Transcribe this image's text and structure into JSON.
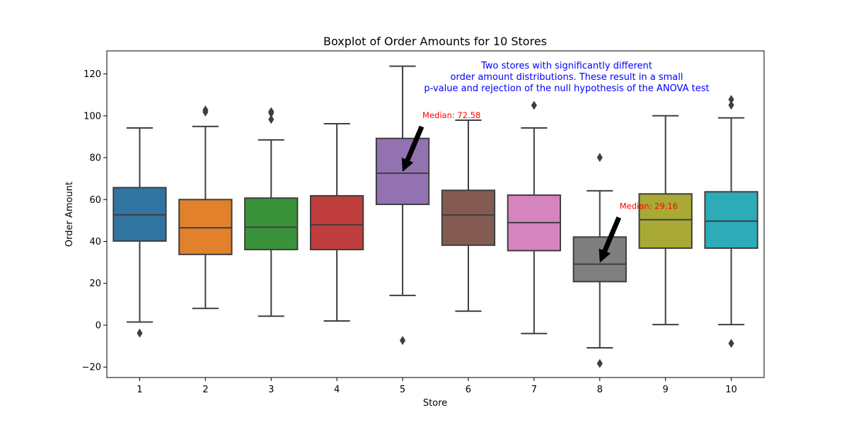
{
  "chart_data": {
    "type": "boxplot",
    "title": "Boxplot of Order Amounts for 10 Stores",
    "xlabel": "Store",
    "ylabel": "Order Amount",
    "ylim": [
      -25,
      131
    ],
    "yticks": [
      -20,
      0,
      20,
      40,
      60,
      80,
      100,
      120
    ],
    "ytick_labels": [
      "−20",
      "0",
      "20",
      "40",
      "60",
      "80",
      "100",
      "120"
    ],
    "grid": false,
    "categories": [
      "1",
      "2",
      "3",
      "4",
      "5",
      "6",
      "7",
      "8",
      "9",
      "10"
    ],
    "boxes": [
      {
        "store": "1",
        "color": "#3274a1",
        "whisker_low": 1.5,
        "q1": 40.2,
        "median": 52.7,
        "q3": 65.7,
        "whisker_high": 94.2,
        "outliers": [
          -3.8
        ]
      },
      {
        "store": "2",
        "color": "#e1812c",
        "whisker_low": 8.0,
        "q1": 33.8,
        "median": 46.5,
        "q3": 60.0,
        "whisker_high": 94.9,
        "outliers": [
          101.8,
          102.8
        ]
      },
      {
        "store": "3",
        "color": "#3a923a",
        "whisker_low": 4.3,
        "q1": 36.1,
        "median": 46.8,
        "q3": 60.7,
        "whisker_high": 88.5,
        "outliers": [
          98.3,
          101.3,
          102.0
        ]
      },
      {
        "store": "4",
        "color": "#c03d3e",
        "whisker_low": 2.0,
        "q1": 36.1,
        "median": 47.9,
        "q3": 61.8,
        "whisker_high": 96.2,
        "outliers": []
      },
      {
        "store": "5",
        "color": "#9372b2",
        "whisker_low": 14.2,
        "q1": 57.7,
        "median": 72.58,
        "q3": 89.2,
        "whisker_high": 123.7,
        "outliers": [
          -7.3
        ]
      },
      {
        "store": "6",
        "color": "#845b53",
        "whisker_low": 6.7,
        "q1": 38.2,
        "median": 52.6,
        "q3": 64.4,
        "whisker_high": 97.9,
        "outliers": []
      },
      {
        "store": "7",
        "color": "#d684bd",
        "whisker_low": -4.0,
        "q1": 35.6,
        "median": 49.0,
        "q3": 62.1,
        "whisker_high": 94.2,
        "outliers": [
          105.0
        ]
      },
      {
        "store": "8",
        "color": "#7f7f7f",
        "whisker_low": -10.8,
        "q1": 20.8,
        "median": 29.16,
        "q3": 42.1,
        "whisker_high": 64.2,
        "outliers": [
          80.1,
          -18.3
        ]
      },
      {
        "store": "9",
        "color": "#a9aa35",
        "whisker_low": 0.3,
        "q1": 36.8,
        "median": 50.4,
        "q3": 62.7,
        "whisker_high": 100.0,
        "outliers": []
      },
      {
        "store": "10",
        "color": "#2eabb8",
        "whisker_low": 0.3,
        "q1": 36.8,
        "median": 49.7,
        "q3": 63.7,
        "whisker_high": 99.0,
        "outliers": [
          105.1,
          107.8,
          -8.7
        ]
      }
    ],
    "median_annotations": [
      {
        "store": "5",
        "text": "Median: 72.58",
        "value": 72.58,
        "color": "#ff0000"
      },
      {
        "store": "8",
        "text": "Median: 29.16",
        "value": 29.16,
        "color": "#ff0000"
      }
    ],
    "note": {
      "lines": [
        "Two stores with significantly different",
        "order amount distributions. These result in a small",
        "p-value and rejection of the null hypothesis of the ANOVA test"
      ],
      "color": "#0000ff"
    },
    "line_color": "#3f3f3f"
  }
}
